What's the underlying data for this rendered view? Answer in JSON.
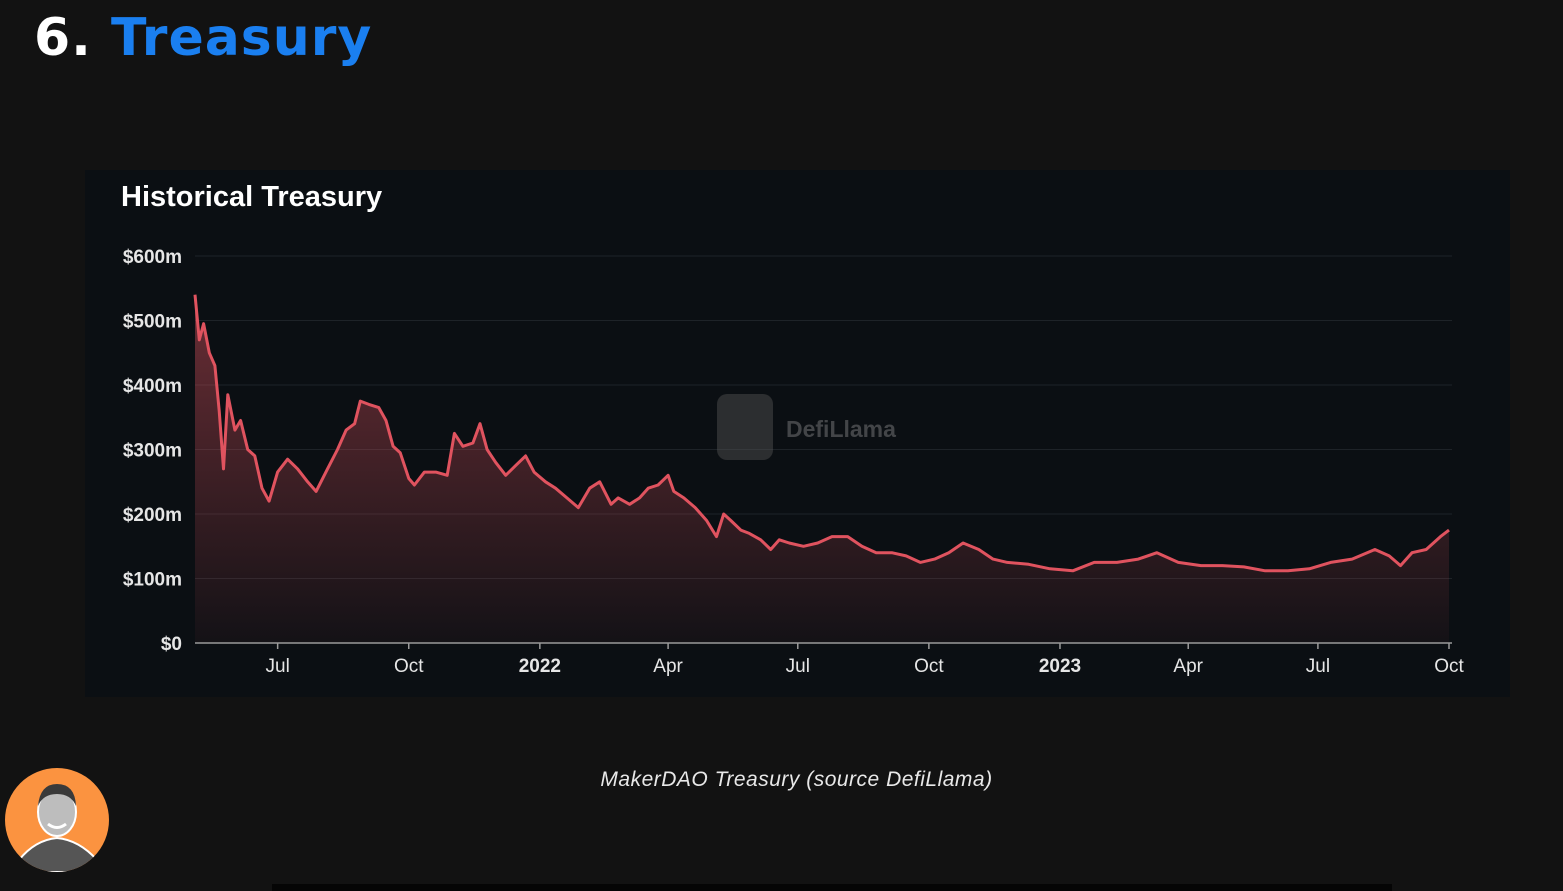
{
  "slide": {
    "number": "6.",
    "title": "Treasury",
    "caption": "MakerDAO Treasury (source DefiLlama)"
  },
  "colors": {
    "background": "#121212",
    "card": "#0b0f13",
    "accent_blue": "#1a7ff0",
    "line": "#e0535f",
    "avatar_bg": "#fb9340"
  },
  "watermark": "DefiLlama",
  "chart_data": {
    "type": "area",
    "title": "Historical Treasury",
    "xlabel": "",
    "ylabel": "",
    "ylim": [
      0,
      600
    ],
    "xlim": [
      "2021-05-04",
      "2023-10-01"
    ],
    "grid": true,
    "yticks": [
      {
        "v": 0,
        "label": "$0"
      },
      {
        "v": 100,
        "label": "$100m"
      },
      {
        "v": 200,
        "label": "$200m"
      },
      {
        "v": 300,
        "label": "$300m"
      },
      {
        "v": 400,
        "label": "$400m"
      },
      {
        "v": 500,
        "label": "$500m"
      },
      {
        "v": 600,
        "label": "$600m"
      }
    ],
    "xticks": [
      {
        "d": "2021-07-01",
        "label": "Jul"
      },
      {
        "d": "2021-10-01",
        "label": "Oct"
      },
      {
        "d": "2022-01-01",
        "label": "2022",
        "bold": true
      },
      {
        "d": "2022-04-01",
        "label": "Apr"
      },
      {
        "d": "2022-07-01",
        "label": "Jul"
      },
      {
        "d": "2022-10-01",
        "label": "Oct"
      },
      {
        "d": "2023-01-01",
        "label": "2023",
        "bold": true
      },
      {
        "d": "2023-04-01",
        "label": "Apr"
      },
      {
        "d": "2023-07-01",
        "label": "Jul"
      },
      {
        "d": "2023-10-01",
        "label": "Oct"
      }
    ],
    "unit": "$m",
    "points": [
      [
        "2021-05-04",
        540
      ],
      [
        "2021-05-07",
        470
      ],
      [
        "2021-05-10",
        495
      ],
      [
        "2021-05-14",
        450
      ],
      [
        "2021-05-18",
        430
      ],
      [
        "2021-05-21",
        360
      ],
      [
        "2021-05-24",
        270
      ],
      [
        "2021-05-27",
        385
      ],
      [
        "2021-06-01",
        330
      ],
      [
        "2021-06-05",
        345
      ],
      [
        "2021-06-10",
        300
      ],
      [
        "2021-06-15",
        290
      ],
      [
        "2021-06-20",
        240
      ],
      [
        "2021-06-25",
        220
      ],
      [
        "2021-07-01",
        265
      ],
      [
        "2021-07-08",
        285
      ],
      [
        "2021-07-15",
        270
      ],
      [
        "2021-07-22",
        250
      ],
      [
        "2021-07-28",
        235
      ],
      [
        "2021-08-05",
        270
      ],
      [
        "2021-08-12",
        300
      ],
      [
        "2021-08-18",
        330
      ],
      [
        "2021-08-24",
        340
      ],
      [
        "2021-08-28",
        375
      ],
      [
        "2021-09-03",
        370
      ],
      [
        "2021-09-10",
        365
      ],
      [
        "2021-09-15",
        345
      ],
      [
        "2021-09-20",
        305
      ],
      [
        "2021-09-25",
        295
      ],
      [
        "2021-10-01",
        255
      ],
      [
        "2021-10-05",
        245
      ],
      [
        "2021-10-12",
        265
      ],
      [
        "2021-10-20",
        265
      ],
      [
        "2021-10-28",
        260
      ],
      [
        "2021-11-02",
        325
      ],
      [
        "2021-11-08",
        305
      ],
      [
        "2021-11-15",
        310
      ],
      [
        "2021-11-20",
        340
      ],
      [
        "2021-11-25",
        300
      ],
      [
        "2021-12-01",
        280
      ],
      [
        "2021-12-08",
        260
      ],
      [
        "2021-12-15",
        275
      ],
      [
        "2021-12-22",
        290
      ],
      [
        "2021-12-28",
        265
      ],
      [
        "2022-01-05",
        250
      ],
      [
        "2022-01-12",
        240
      ],
      [
        "2022-01-20",
        225
      ],
      [
        "2022-01-28",
        210
      ],
      [
        "2022-02-05",
        240
      ],
      [
        "2022-02-12",
        250
      ],
      [
        "2022-02-20",
        215
      ],
      [
        "2022-02-25",
        225
      ],
      [
        "2022-03-05",
        215
      ],
      [
        "2022-03-12",
        225
      ],
      [
        "2022-03-18",
        240
      ],
      [
        "2022-03-25",
        245
      ],
      [
        "2022-04-01",
        260
      ],
      [
        "2022-04-05",
        235
      ],
      [
        "2022-04-12",
        225
      ],
      [
        "2022-04-20",
        210
      ],
      [
        "2022-04-28",
        190
      ],
      [
        "2022-05-05",
        165
      ],
      [
        "2022-05-10",
        200
      ],
      [
        "2022-05-15",
        190
      ],
      [
        "2022-05-22",
        175
      ],
      [
        "2022-05-28",
        170
      ],
      [
        "2022-06-05",
        160
      ],
      [
        "2022-06-12",
        145
      ],
      [
        "2022-06-18",
        160
      ],
      [
        "2022-06-25",
        155
      ],
      [
        "2022-07-05",
        150
      ],
      [
        "2022-07-15",
        155
      ],
      [
        "2022-07-25",
        165
      ],
      [
        "2022-08-05",
        165
      ],
      [
        "2022-08-15",
        150
      ],
      [
        "2022-08-25",
        140
      ],
      [
        "2022-09-05",
        140
      ],
      [
        "2022-09-15",
        135
      ],
      [
        "2022-09-25",
        125
      ],
      [
        "2022-10-05",
        130
      ],
      [
        "2022-10-15",
        140
      ],
      [
        "2022-10-25",
        155
      ],
      [
        "2022-11-05",
        145
      ],
      [
        "2022-11-15",
        130
      ],
      [
        "2022-11-25",
        125
      ],
      [
        "2022-12-10",
        122
      ],
      [
        "2022-12-25",
        115
      ],
      [
        "2023-01-10",
        112
      ],
      [
        "2023-01-25",
        125
      ],
      [
        "2023-02-10",
        125
      ],
      [
        "2023-02-25",
        130
      ],
      [
        "2023-03-10",
        140
      ],
      [
        "2023-03-25",
        125
      ],
      [
        "2023-04-10",
        120
      ],
      [
        "2023-04-25",
        120
      ],
      [
        "2023-05-10",
        118
      ],
      [
        "2023-05-25",
        112
      ],
      [
        "2023-06-10",
        112
      ],
      [
        "2023-06-25",
        115
      ],
      [
        "2023-07-10",
        125
      ],
      [
        "2023-07-25",
        130
      ],
      [
        "2023-08-10",
        145
      ],
      [
        "2023-08-20",
        135
      ],
      [
        "2023-08-28",
        120
      ],
      [
        "2023-09-05",
        140
      ],
      [
        "2023-09-15",
        145
      ],
      [
        "2023-09-25",
        165
      ],
      [
        "2023-10-01",
        175
      ]
    ]
  }
}
